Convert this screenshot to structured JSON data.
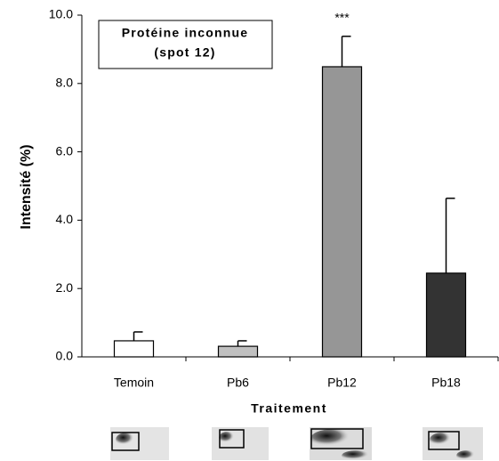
{
  "chart_data": {
    "type": "bar",
    "title_lines": [
      "Protéine inconnue",
      "(spot 12)"
    ],
    "ylabel": "Intensité (%)",
    "xlabel": "Traitement",
    "categories": [
      "Temoin",
      "Pb6",
      "Pb12",
      "Pb18"
    ],
    "values": [
      0.47,
      0.31,
      8.49,
      2.45
    ],
    "errors": [
      0.26,
      0.16,
      0.89,
      2.19
    ],
    "colors": [
      "#ffffff",
      "#c0c0c0",
      "#969696",
      "#333333"
    ],
    "annotation": {
      "text": "***",
      "category": "Pb12"
    },
    "ylim": [
      0,
      10
    ],
    "yticks": [
      {
        "value": 0,
        "label": "0.0"
      },
      {
        "value": 2,
        "label": "2.0"
      },
      {
        "value": 4,
        "label": "4.0"
      },
      {
        "value": 6,
        "label": "6.0"
      },
      {
        "value": 8,
        "label": "8.0"
      },
      {
        "value": 10,
        "label": "10.0"
      }
    ],
    "grid": false
  }
}
